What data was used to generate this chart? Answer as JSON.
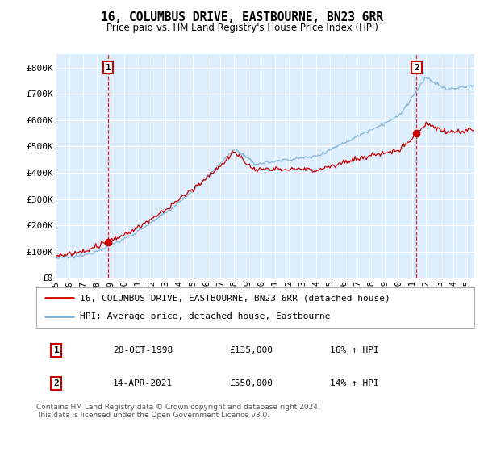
{
  "title": "16, COLUMBUS DRIVE, EASTBOURNE, BN23 6RR",
  "subtitle": "Price paid vs. HM Land Registry's House Price Index (HPI)",
  "ylim": [
    0,
    850000
  ],
  "yticks": [
    0,
    100000,
    200000,
    300000,
    400000,
    500000,
    600000,
    700000,
    800000
  ],
  "ytick_labels": [
    "£0",
    "£100K",
    "£200K",
    "£300K",
    "£400K",
    "£500K",
    "£600K",
    "£700K",
    "£800K"
  ],
  "sale1_date": 1998.83,
  "sale1_price": 135000,
  "sale2_date": 2021.29,
  "sale2_price": 550000,
  "hpi_color": "#7bafd4",
  "price_color": "#cc0000",
  "vline_color": "#cc0000",
  "plot_bg_color": "#ddeeff",
  "background_color": "#ffffff",
  "grid_color": "#ffffff",
  "legend_entries": [
    "16, COLUMBUS DRIVE, EASTBOURNE, BN23 6RR (detached house)",
    "HPI: Average price, detached house, Eastbourne"
  ],
  "table_rows": [
    [
      "1",
      "28-OCT-1998",
      "£135,000",
      "16% ↑ HPI"
    ],
    [
      "2",
      "14-APR-2021",
      "£550,000",
      "14% ↑ HPI"
    ]
  ],
  "footnote": "Contains HM Land Registry data © Crown copyright and database right 2024.\nThis data is licensed under the Open Government Licence v3.0.",
  "xmin": 1995.0,
  "xmax": 2025.5,
  "xticks": [
    1995,
    1996,
    1997,
    1998,
    1999,
    2000,
    2001,
    2002,
    2003,
    2004,
    2005,
    2006,
    2007,
    2008,
    2009,
    2010,
    2011,
    2012,
    2013,
    2014,
    2015,
    2016,
    2017,
    2018,
    2019,
    2020,
    2021,
    2022,
    2023,
    2024,
    2025
  ]
}
